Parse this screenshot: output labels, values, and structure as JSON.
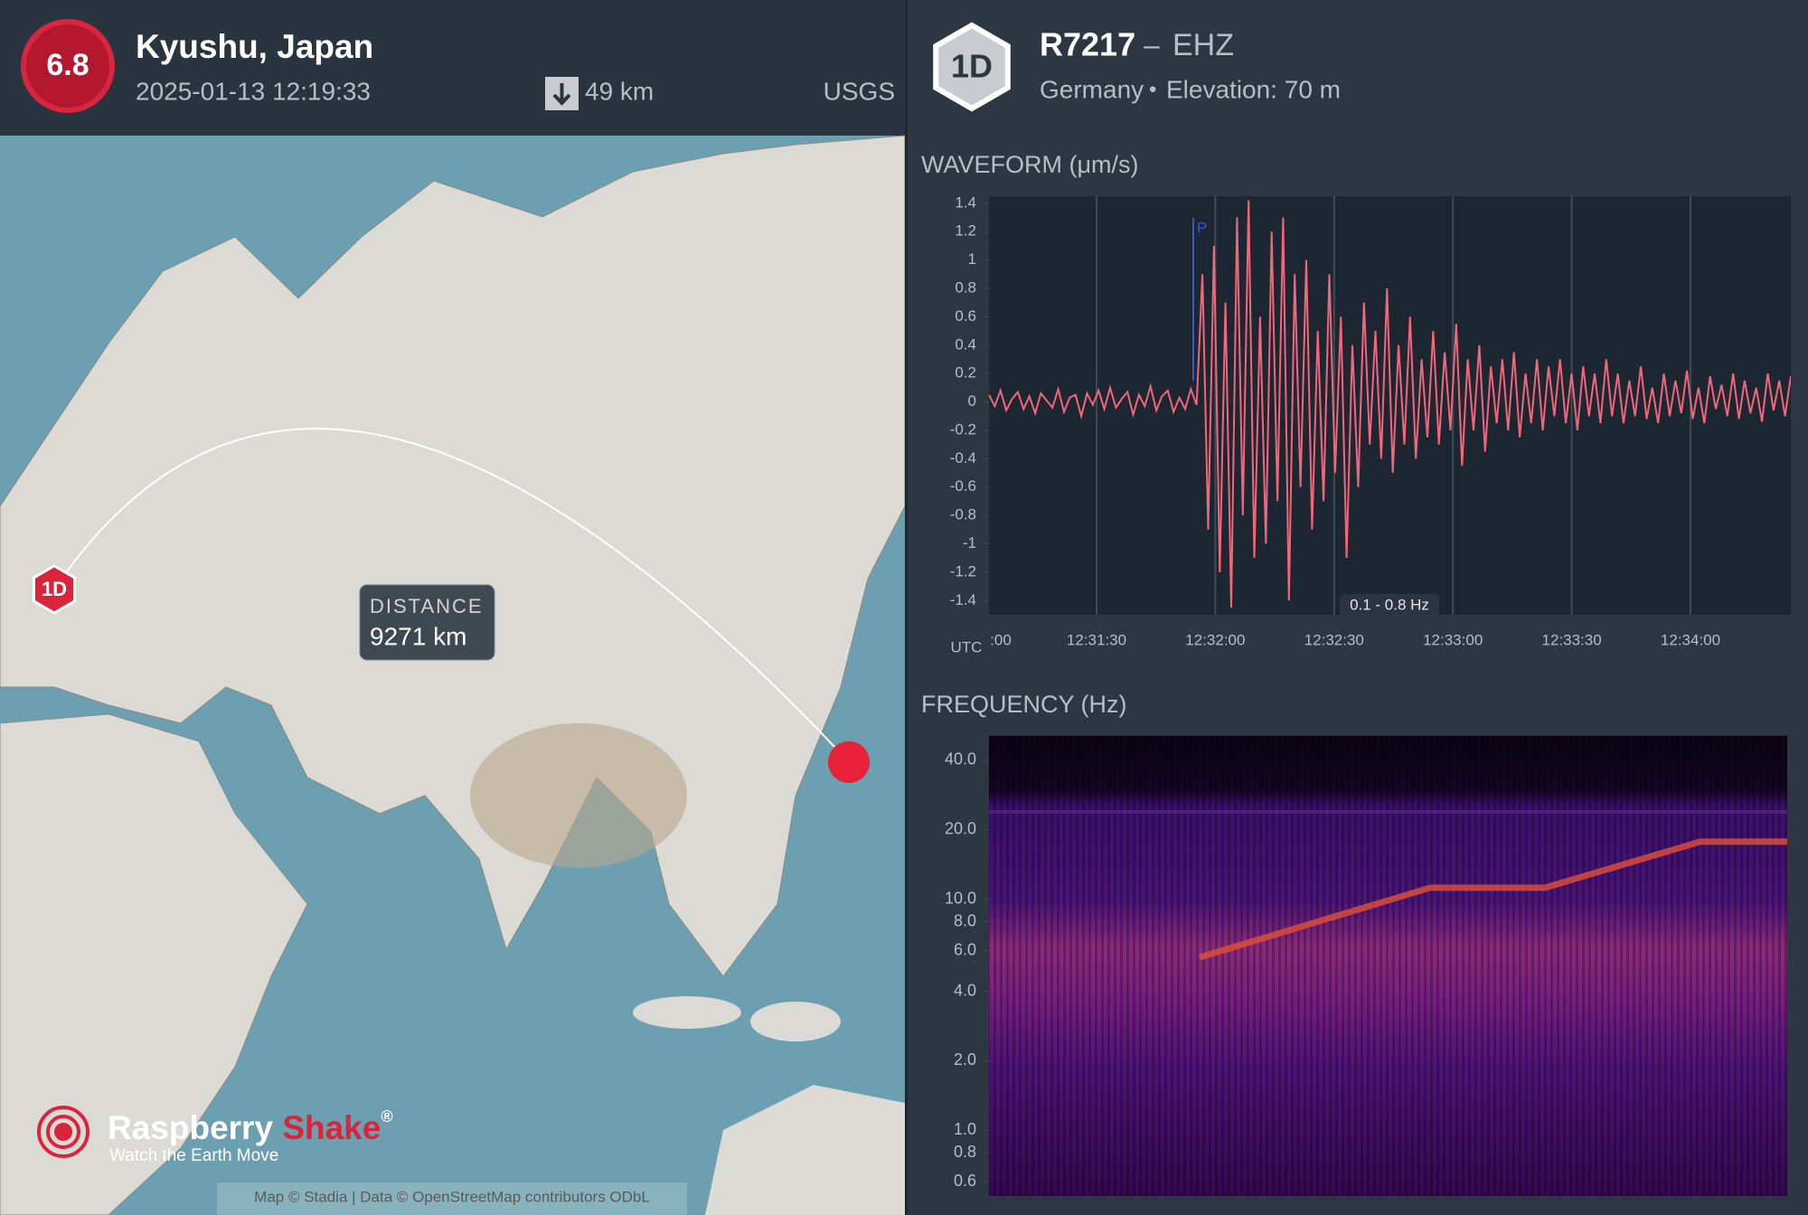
{
  "event": {
    "magnitude": 6.8,
    "location": "Kyushu, Japan",
    "time": "2025-01-13 12:19:33",
    "depth": "49 km",
    "source": "USGS"
  },
  "station": {
    "badge": "1D",
    "id": "R7217",
    "separator": "–",
    "channel": "EHZ",
    "country": "Germany",
    "bullet": "•",
    "elevation": "Elevation: 70 m"
  },
  "map": {
    "marker_label": "1D",
    "distance_title": "DISTANCE",
    "distance": "9271 km",
    "logo": "Raspberry ",
    "logo_accent": "Shake",
    "logo_mark": "®",
    "tagline": "Watch the Earth Move",
    "attribution": "Map © Stadia | Data © OpenStreetMap contributors ODbL"
  },
  "chart_data": [
    {
      "type": "line",
      "title": "WAVEFORM (μm/s)",
      "color": "#f2667b",
      "time_labels": [
        ":00",
        "12:31:30",
        "12:32:00",
        "12:32:30",
        "12:33:00",
        "12:33:30",
        "12:34:00"
      ],
      "time_zone": "UTC",
      "phase": "P",
      "filter": "0.1 - 0.8 Hz",
      "ylim": [
        -1.5,
        1.45
      ],
      "yticks": [
        1.4,
        1.2,
        1,
        0.8,
        0.6,
        0.4,
        0.2,
        0,
        -0.2,
        -0.4,
        -0.6,
        -0.8,
        -1,
        -1.2,
        -1.4
      ],
      "values": [
        0.05,
        -0.03,
        0.08,
        -0.06,
        0.02,
        0.07,
        -0.05,
        0.04,
        -0.08,
        0.06,
        0.01,
        -0.04,
        0.09,
        -0.07,
        0.03,
        0.05,
        -0.1,
        0.06,
        -0.02,
        0.08,
        -0.05,
        0.1,
        -0.04,
        0.02,
        0.07,
        -0.09,
        0.05,
        -0.03,
        0.11,
        -0.06,
        0.04,
        0.08,
        -0.07,
        0.03,
        -0.05,
        0.09,
        -0.02,
        0.9,
        -0.9,
        1.1,
        -1.2,
        0.7,
        -1.45,
        1.3,
        -0.8,
        1.42,
        -1.1,
        0.6,
        -1.0,
        1.2,
        -0.7,
        1.3,
        -1.4,
        0.9,
        -0.6,
        1.0,
        -0.9,
        0.5,
        -0.7,
        0.9,
        -0.5,
        0.6,
        -1.1,
        0.4,
        -0.6,
        0.7,
        -0.3,
        0.5,
        -0.4,
        0.8,
        -0.5,
        0.4,
        -0.3,
        0.6,
        -0.4,
        0.3,
        -0.25,
        0.5,
        -0.3,
        0.35,
        -0.2,
        0.55,
        -0.45,
        0.3,
        -0.2,
        0.4,
        -0.35,
        0.25,
        -0.15,
        0.3,
        -0.2,
        0.35,
        -0.25,
        0.2,
        -0.15,
        0.3,
        -0.2,
        0.25,
        -0.1,
        0.3,
        -0.15,
        0.2,
        -0.2,
        0.25,
        -0.1,
        0.2,
        -0.15,
        0.3,
        -0.1,
        0.2,
        -0.15,
        0.15,
        -0.1,
        0.25,
        -0.12,
        0.1,
        -0.15,
        0.2,
        -0.1,
        0.15,
        -0.08,
        0.22,
        -0.12,
        0.1,
        -0.15,
        0.18,
        -0.05,
        0.12,
        -0.1,
        0.2,
        -0.12,
        0.15,
        -0.08,
        0.1,
        -0.14,
        0.2,
        -0.06,
        0.15,
        -0.1,
        0.18
      ]
    },
    {
      "type": "spectrogram",
      "title": "FREQUENCY (Hz)",
      "log_scale": true,
      "ylim": [
        0.52,
        51
      ],
      "yticks": [
        {
          "value": 40,
          "label": "40.0"
        },
        {
          "value": 20,
          "label": "20.0"
        },
        {
          "value": 10,
          "label": "10.0"
        },
        {
          "value": 8,
          "label": "8.0"
        },
        {
          "value": 6,
          "label": "6.0"
        },
        {
          "value": 4,
          "label": "4.0"
        },
        {
          "value": 2,
          "label": "2.0"
        },
        {
          "value": 1,
          "label": "1.0"
        },
        {
          "value": 0.8,
          "label": "0.8"
        },
        {
          "value": 0.6,
          "label": "0.6"
        }
      ]
    }
  ]
}
